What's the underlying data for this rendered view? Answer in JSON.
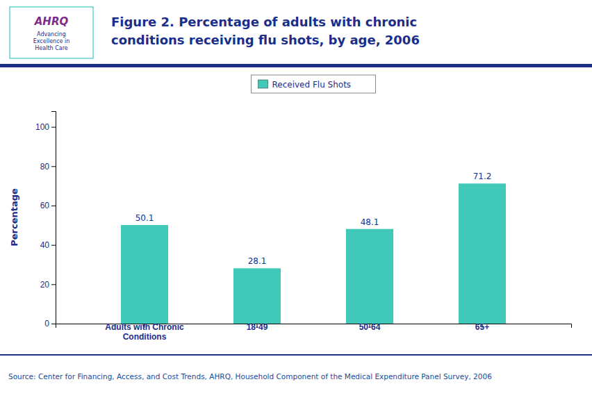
{
  "chart_data": {
    "type": "bar",
    "title": "Figure 2. Percentage of adults with chronic\nconditions receiving flu shots, by age, 2006",
    "categories": [
      "Adults with Chronic\nConditions",
      "18-49",
      "50-64",
      "65+"
    ],
    "series": [
      {
        "name": "Received Flu Shots",
        "color": "#40C8B8",
        "values": [
          50.1,
          28.1,
          48.1,
          71.2
        ]
      }
    ],
    "ylabel": "Percentage",
    "ylim": [
      0,
      108
    ],
    "yticks": [
      0,
      20,
      40,
      60,
      80,
      100
    ],
    "data_labels": true,
    "legend": "top",
    "grid": false,
    "annotations": [
      "AHRQ",
      "Advancing\nExcellence in\nHealth Care",
      "Source: Center for Financing, Access, and Cost Trends, AHRQ, Household Component of the Medical Expenditure Panel Survey, 2006"
    ]
  }
}
